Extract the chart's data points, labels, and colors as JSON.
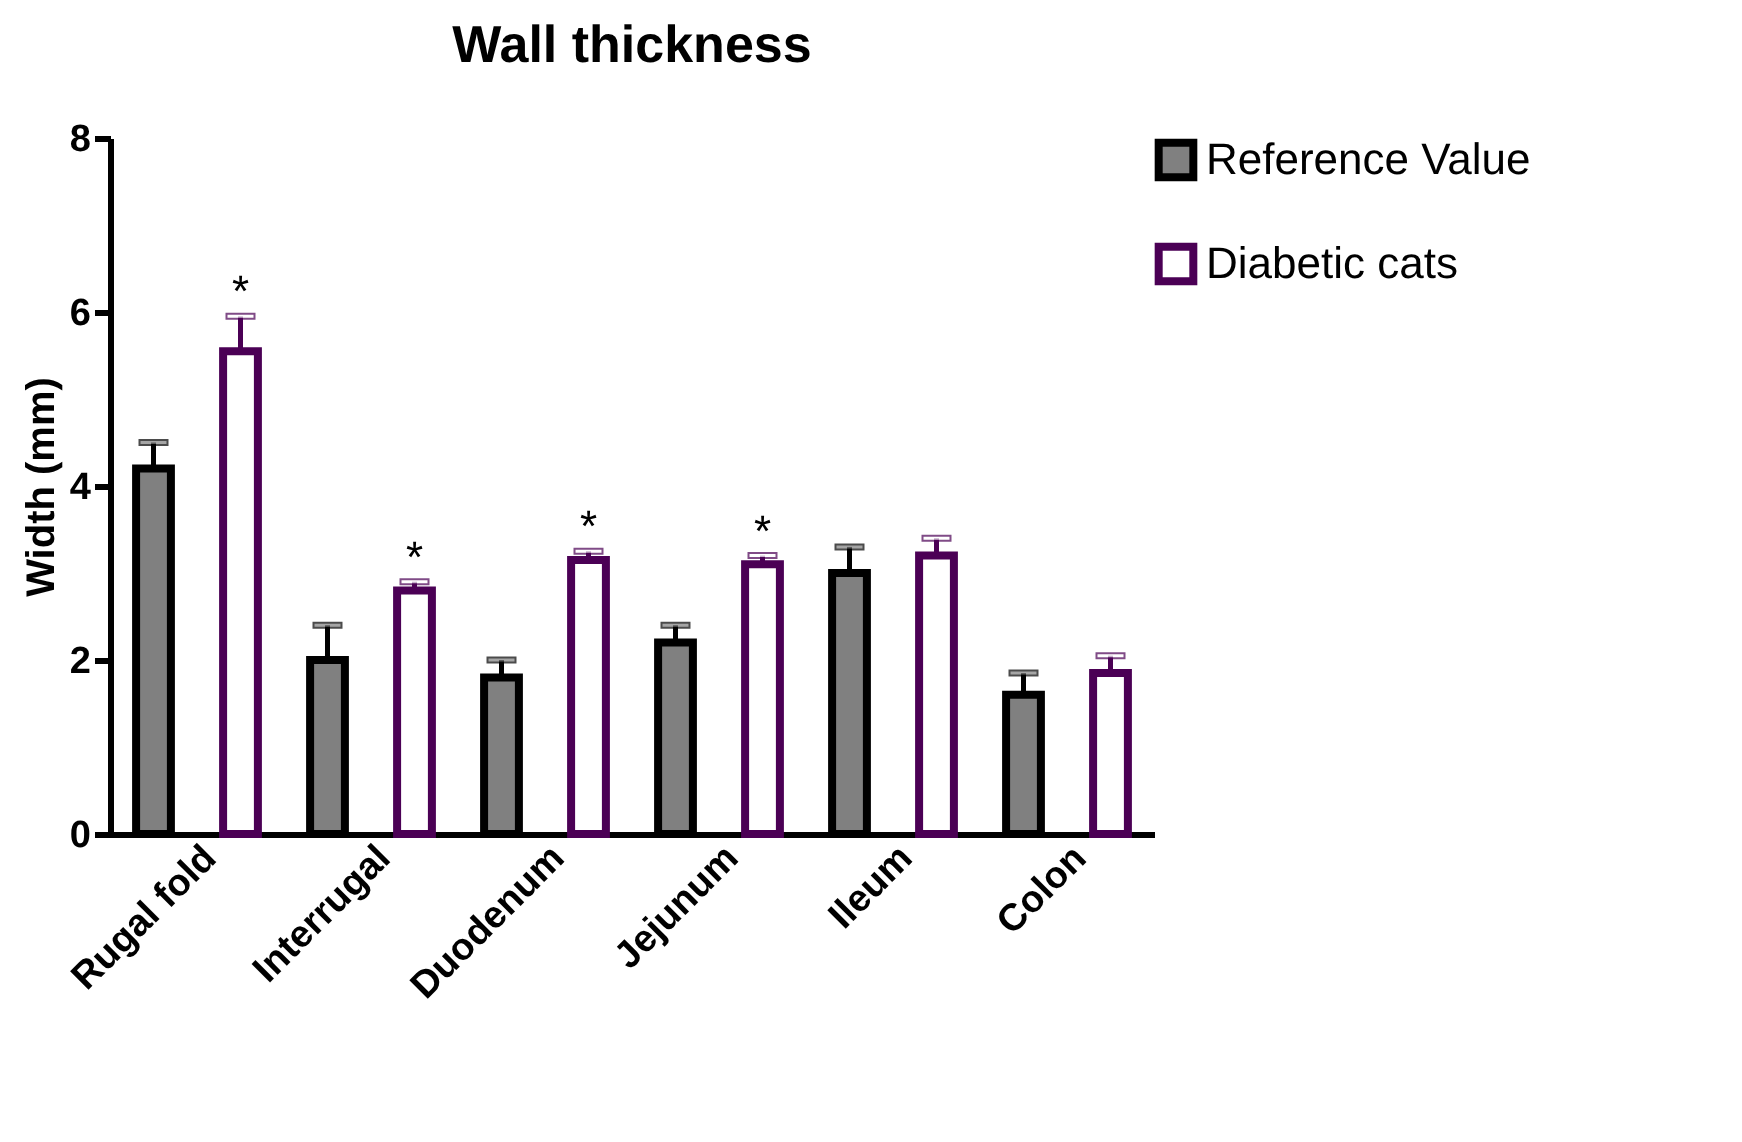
{
  "chart_data": {
    "type": "bar",
    "title": "Wall thickness",
    "ylabel": "Width (mm)",
    "categories": [
      "Rugal fold",
      "Interrugal",
      "Duodenum",
      "Jejunum",
      "Ileum",
      "Colon"
    ],
    "series": [
      {
        "name": "Reference Value",
        "color": "#000000",
        "values": [
          4.2,
          2.0,
          1.8,
          2.2,
          3.0,
          1.6
        ],
        "errors": [
          0.3,
          0.4,
          0.2,
          0.2,
          0.3,
          0.25
        ]
      },
      {
        "name": "Diabetic cats",
        "color": "#4b0055",
        "values": [
          5.55,
          2.8,
          3.15,
          3.1,
          3.2,
          1.85
        ],
        "value_labels": [
          "*",
          "*",
          "*",
          "*",
          null,
          null
        ],
        "errors": [
          0.4,
          0.1,
          0.1,
          0.1,
          0.2,
          0.2
        ]
      }
    ],
    "ylim": [
      0,
      8
    ],
    "yticks": [
      0,
      2,
      4,
      6,
      8
    ],
    "grid": false,
    "legend": "top right"
  }
}
